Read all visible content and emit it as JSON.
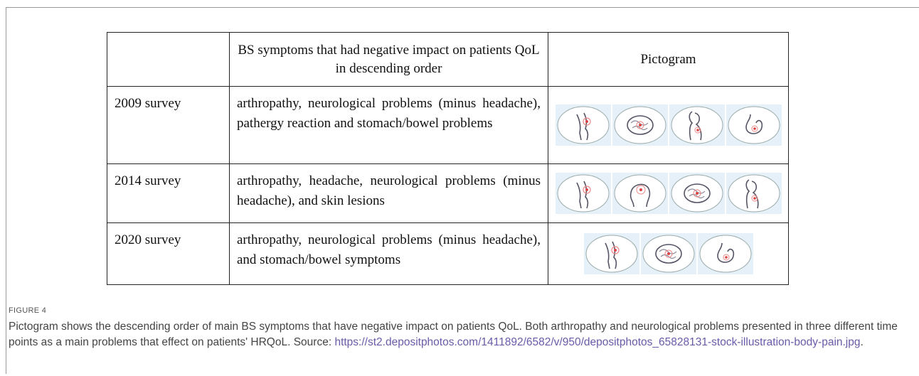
{
  "table": {
    "header": [
      "",
      "BS symptoms that had negative impact on patients QoL in descending order",
      "Pictogram"
    ],
    "rows": [
      [
        "2009 survey",
        "arthropathy, neurological problems (minus headache), pathergy reaction and stomach/bowel problems"
      ],
      [
        "2014 survey",
        "arthropathy, headache, neurological problems (minus headache), and skin lesions"
      ],
      [
        "2020 survey",
        "arthropathy, neurological problems (minus headache), and stomach/bowel symptoms"
      ]
    ]
  },
  "caption": {
    "label": "FIGURE 4",
    "text": "Pictogram shows the descending order of main BS symptoms that have negative impact on patients QoL. Both arthropathy and neurological problems presented in three different time points as a main problems that effect on patients' HRQoL. Source: ",
    "link": "https://st2.depositphotos.com/1411892/6582/v/950/depositphotos_65828131-stock-illustration-body-pain.jpg",
    "end": "."
  }
}
